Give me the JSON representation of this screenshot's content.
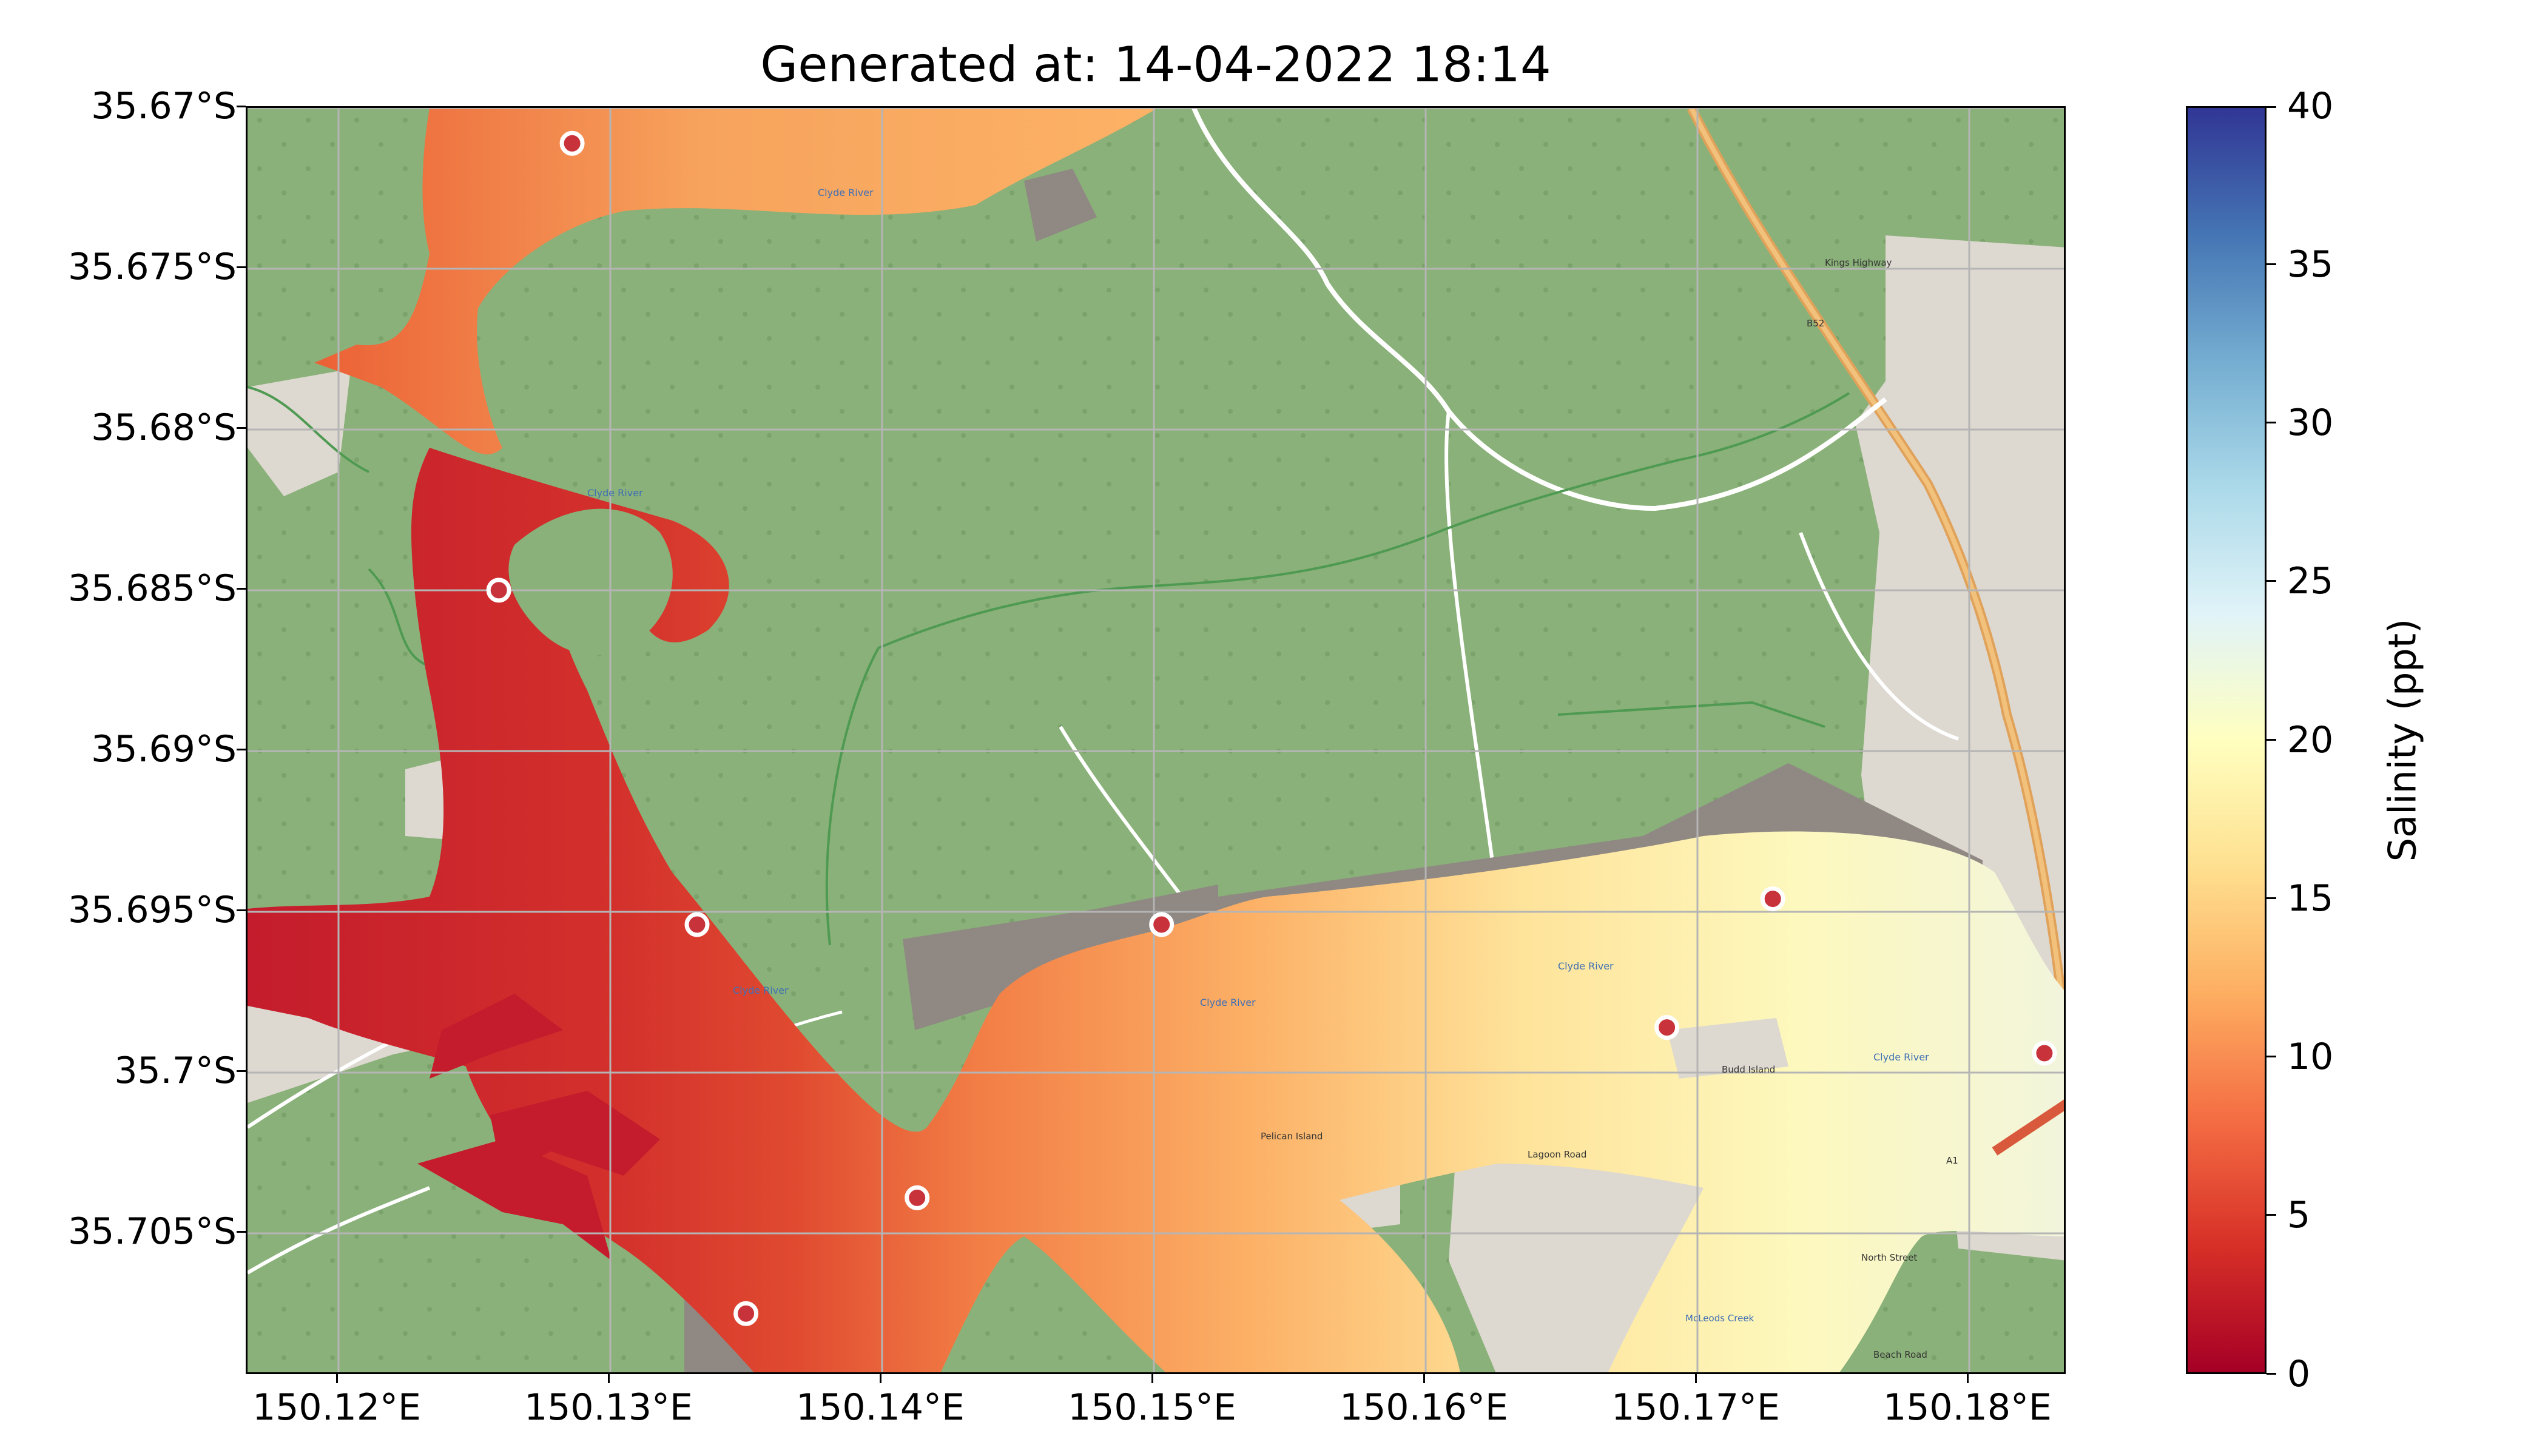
{
  "title": "Generated at: 14-04-2022 18:14",
  "y_ticks": [
    "35.67°S",
    "35.675°S",
    "35.68°S",
    "35.685°S",
    "35.69°S",
    "35.695°S",
    "35.7°S",
    "35.705°S"
  ],
  "x_ticks": [
    "150.12°E",
    "150.13°E",
    "150.14°E",
    "150.15°E",
    "150.16°E",
    "150.17°E",
    "150.18°E"
  ],
  "colorbar": {
    "label": "Salinity (ppt)",
    "ticks": [
      "0",
      "5",
      "10",
      "15",
      "20",
      "25",
      "30",
      "35",
      "40"
    ],
    "colormap": [
      "#a50026",
      "#d73027",
      "#f46d43",
      "#fdae61",
      "#fee090",
      "#ffffbf",
      "#e0f3f8",
      "#abd9e9",
      "#74add1",
      "#4575b4",
      "#313695"
    ]
  },
  "map": {
    "land_color": "#8ab179",
    "urban_color": "#ddd8d0",
    "mudflat_color": "#8f8883",
    "river_labels": [
      "Clyde River",
      "Clyde River",
      "Clyde River",
      "Clyde River",
      "Clyde River",
      "Clyde River"
    ],
    "place_labels": [
      "Pelican Island",
      "Budd Island",
      "McLeods Creek",
      "Lagoon Road",
      "B52",
      "A1",
      "Kings Highway",
      "North Street",
      "Beach Road"
    ]
  },
  "stations": [
    {
      "lon": 150.1286,
      "lat": -35.6711,
      "style": "white-edge"
    },
    {
      "lon": 150.1259,
      "lat": -35.685,
      "style": "white-edge"
    },
    {
      "lon": 150.1332,
      "lat": -35.6954,
      "style": "white-edge"
    },
    {
      "lon": 150.1413,
      "lat": -35.7039,
      "style": "white-edge"
    },
    {
      "lon": 150.135,
      "lat": -35.7075,
      "style": "white-edge"
    },
    {
      "lon": 150.1503,
      "lat": -35.6954,
      "style": "white-edge"
    },
    {
      "lon": 150.1689,
      "lat": -35.6986,
      "style": "white-edge"
    },
    {
      "lon": 150.1728,
      "lat": -35.6946,
      "style": "white-edge"
    },
    {
      "lon": 150.1828,
      "lat": -35.6994,
      "style": "white-edge"
    }
  ]
}
